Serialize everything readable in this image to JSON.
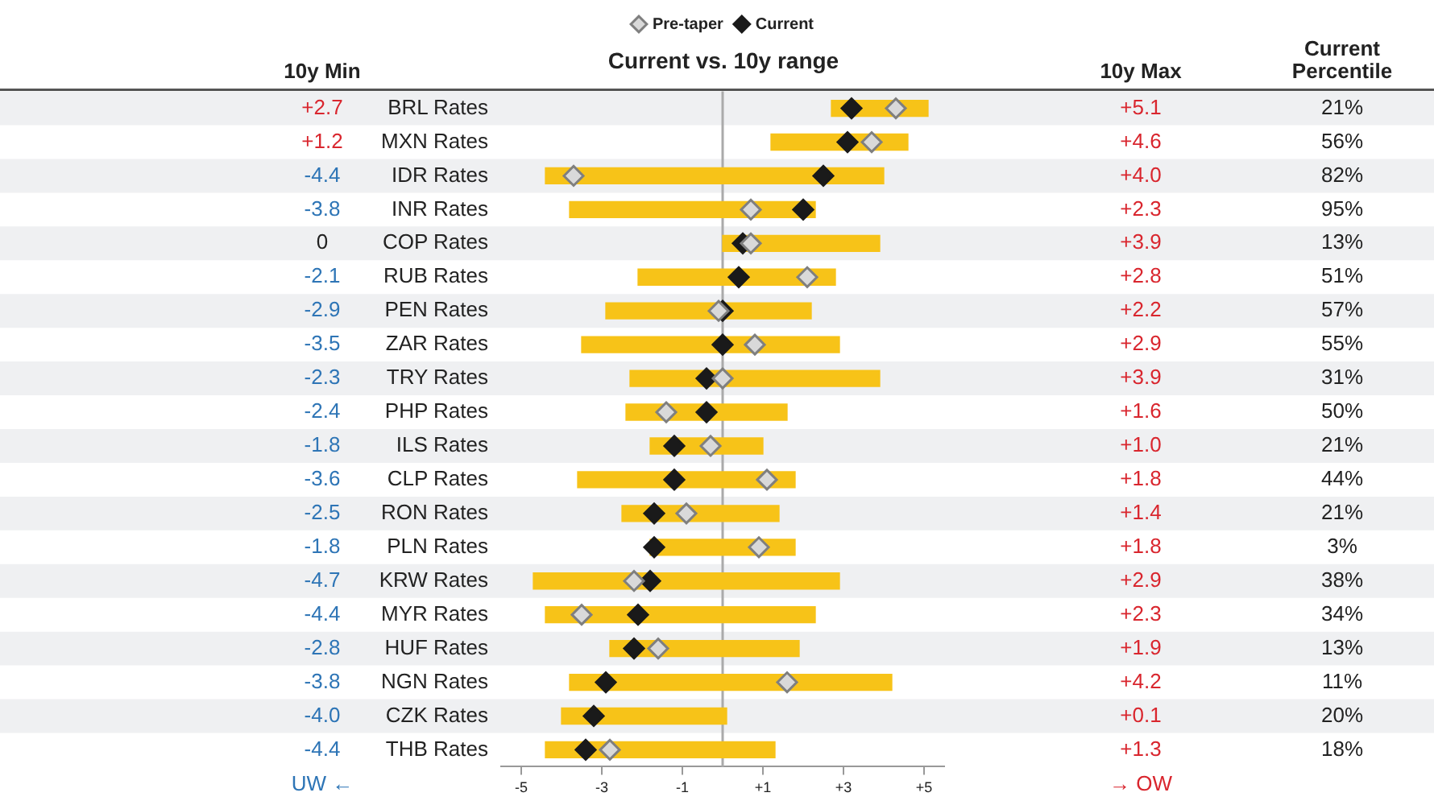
{
  "chart_data": {
    "type": "bar",
    "orientation": "horizontal",
    "title": "Current vs. 10y range",
    "legend": "top",
    "grid": false,
    "marker": "diamond",
    "categories": [
      "BRL Rates",
      "MXN Rates",
      "IDR Rates",
      "INR Rates",
      "COP Rates",
      "RUB Rates",
      "PEN Rates",
      "ZAR Rates",
      "TRY Rates",
      "PHP Rates",
      "ILS Rates",
      "CLP Rates",
      "RON Rates",
      "PLN Rates",
      "KRW Rates",
      "MYR Rates",
      "HUF Rates",
      "NGN Rates",
      "CZK Rates",
      "THB Rates"
    ],
    "series": [
      {
        "color": "#f7c318",
        "base": [
          2.7,
          1.2,
          -4.4,
          -3.8,
          0,
          -2.1,
          -2.9,
          -3.5,
          -2.3,
          -2.4,
          -1.8,
          -3.6,
          -2.5,
          -1.8,
          -4.7,
          -4.4,
          -2.8,
          -3.8,
          -4.0,
          -4.4
        ],
        "values": [
          2.4,
          3.4,
          8.4,
          6.1,
          3.9,
          4.9,
          5.1,
          6.4,
          6.2,
          4.0,
          2.8,
          5.4,
          3.9,
          3.6,
          7.6,
          6.7,
          4.7,
          8.0,
          4.1,
          5.7
        ]
      },
      {
        "type": "scatter",
        "name": "Pre-taper",
        "color": "#d9d9d9",
        "values": [
          4.3,
          3.7,
          -3.7,
          0.7,
          0.7,
          2.1,
          -0.1,
          0.8,
          0.0,
          -1.4,
          -0.3,
          1.1,
          -0.9,
          0.9,
          -2.2,
          -3.5,
          -1.6,
          1.6,
          null,
          -2.8
        ]
      },
      {
        "type": "scatter",
        "name": "Current",
        "color": "#1a1a1a",
        "values": [
          3.2,
          3.1,
          2.5,
          2.0,
          0.5,
          0.4,
          0.0,
          0.0,
          -0.4,
          -0.4,
          -1.2,
          -1.2,
          -1.7,
          -1.7,
          -1.8,
          -2.1,
          -2.2,
          -2.9,
          -3.2,
          -3.4
        ]
      }
    ],
    "xlim": [
      -5.5,
      5.5
    ],
    "xticks": [
      -5,
      -3,
      -1,
      {
        "value": 1,
        "label": "+1"
      },
      {
        "value": 3,
        "label": "+3"
      },
      {
        "value": 5,
        "label": "+5"
      }
    ],
    "ref_lines": [
      {
        "axis": "x",
        "value": 0,
        "color": "#aaaaaa"
      }
    ],
    "annotations": [
      "10y Min",
      "10y Max",
      "Current Percentile",
      "UW ←",
      "→ OW",
      "+2.7",
      "+5.1",
      "21%",
      "+1.2",
      "+4.6",
      "56%",
      "-4.4",
      "+4.0",
      "82%",
      "-3.8",
      "+2.3",
      "95%",
      "0",
      "+3.9",
      "13%",
      "-2.1",
      "+2.8",
      "51%",
      "-2.9",
      "+2.2",
      "57%",
      "-3.5",
      "+2.9",
      "55%",
      "-2.3",
      "+3.9",
      "31%",
      "-2.4",
      "+1.6",
      "50%",
      "-1.8",
      "+1.0",
      "21%",
      "-3.6",
      "+1.8",
      "44%",
      "-2.5",
      "+1.4",
      "21%",
      "-1.8",
      "+1.8",
      "3%",
      "-4.7",
      "+2.9",
      "38%",
      "-4.4",
      "+2.3",
      "34%",
      "-2.8",
      "+1.9",
      "13%",
      "-3.8",
      "+4.2",
      "11%",
      "-4.0",
      "+0.1",
      "20%",
      "-4.4",
      "+1.3",
      "18%"
    ]
  }
}
